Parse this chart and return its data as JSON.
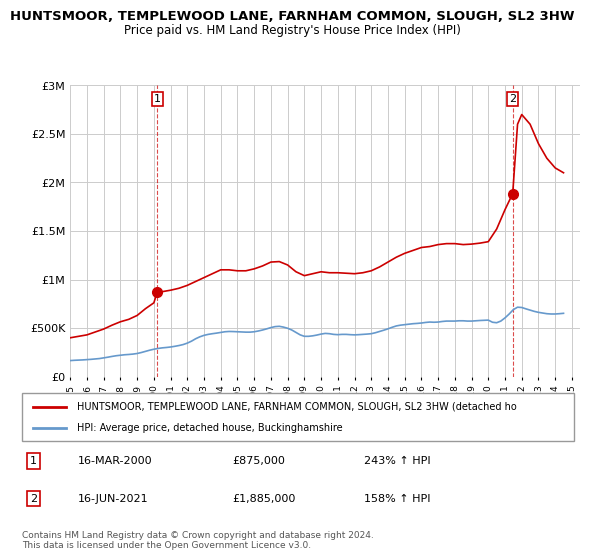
{
  "title": "HUNTSMOOR, TEMPLEWOOD LANE, FARNHAM COMMON, SLOUGH, SL2 3HW",
  "subtitle": "Price paid vs. HM Land Registry's House Price Index (HPI)",
  "ylim": [
    0,
    3000000
  ],
  "yticks": [
    0,
    500000,
    1000000,
    1500000,
    2000000,
    2500000,
    3000000
  ],
  "ytick_labels": [
    "£0",
    "£500K",
    "£1M",
    "£1.5M",
    "£2M",
    "£2.5M",
    "£3M"
  ],
  "x_start_year": 1995,
  "x_end_year": 2025,
  "legend_line1": "HUNTSMOOR, TEMPLEWOOD LANE, FARNHAM COMMON, SLOUGH, SL2 3HW (detached ho",
  "legend_line2": "HPI: Average price, detached house, Buckinghamshire",
  "point1_label": "1",
  "point1_date": "16-MAR-2000",
  "point1_price": 875000,
  "point1_year": 2000.21,
  "point1_hpi_pct": "243% ↑ HPI",
  "point2_label": "2",
  "point2_date": "16-JUN-2021",
  "point2_price": 1885000,
  "point2_year": 2021.46,
  "point2_hpi_pct": "158% ↑ HPI",
  "red_color": "#cc0000",
  "blue_color": "#6699cc",
  "annotation_color": "#cc0000",
  "background_color": "#ffffff",
  "grid_color": "#cccccc",
  "copyright_text": "Contains HM Land Registry data © Crown copyright and database right 2024.\nThis data is licensed under the Open Government Licence v3.0.",
  "hpi_data_x": [
    1995.0,
    1995.25,
    1995.5,
    1995.75,
    1996.0,
    1996.25,
    1996.5,
    1996.75,
    1997.0,
    1997.25,
    1997.5,
    1997.75,
    1998.0,
    1998.25,
    1998.5,
    1998.75,
    1999.0,
    1999.25,
    1999.5,
    1999.75,
    2000.0,
    2000.25,
    2000.5,
    2000.75,
    2001.0,
    2001.25,
    2001.5,
    2001.75,
    2002.0,
    2002.25,
    2002.5,
    2002.75,
    2003.0,
    2003.25,
    2003.5,
    2003.75,
    2004.0,
    2004.25,
    2004.5,
    2004.75,
    2005.0,
    2005.25,
    2005.5,
    2005.75,
    2006.0,
    2006.25,
    2006.5,
    2006.75,
    2007.0,
    2007.25,
    2007.5,
    2007.75,
    2008.0,
    2008.25,
    2008.5,
    2008.75,
    2009.0,
    2009.25,
    2009.5,
    2009.75,
    2010.0,
    2010.25,
    2010.5,
    2010.75,
    2011.0,
    2011.25,
    2011.5,
    2011.75,
    2012.0,
    2012.25,
    2012.5,
    2012.75,
    2013.0,
    2013.25,
    2013.5,
    2013.75,
    2014.0,
    2014.25,
    2014.5,
    2014.75,
    2015.0,
    2015.25,
    2015.5,
    2015.75,
    2016.0,
    2016.25,
    2016.5,
    2016.75,
    2017.0,
    2017.25,
    2017.5,
    2017.75,
    2018.0,
    2018.25,
    2018.5,
    2018.75,
    2019.0,
    2019.25,
    2019.5,
    2019.75,
    2020.0,
    2020.25,
    2020.5,
    2020.75,
    2021.0,
    2021.25,
    2021.5,
    2021.75,
    2022.0,
    2022.25,
    2022.5,
    2022.75,
    2023.0,
    2023.25,
    2023.5,
    2023.75,
    2024.0,
    2024.25,
    2024.5
  ],
  "hpi_data_y": [
    165000,
    168000,
    170000,
    172000,
    175000,
    178000,
    182000,
    186000,
    193000,
    200000,
    208000,
    215000,
    220000,
    225000,
    228000,
    232000,
    238000,
    248000,
    260000,
    272000,
    282000,
    290000,
    296000,
    300000,
    305000,
    312000,
    320000,
    330000,
    345000,
    365000,
    390000,
    410000,
    425000,
    435000,
    442000,
    448000,
    455000,
    462000,
    465000,
    464000,
    462000,
    460000,
    458000,
    458000,
    462000,
    470000,
    480000,
    492000,
    505000,
    515000,
    518000,
    510000,
    498000,
    480000,
    455000,
    430000,
    415000,
    415000,
    420000,
    428000,
    438000,
    445000,
    442000,
    435000,
    432000,
    435000,
    435000,
    432000,
    430000,
    432000,
    435000,
    438000,
    442000,
    452000,
    465000,
    478000,
    492000,
    508000,
    522000,
    530000,
    535000,
    540000,
    545000,
    548000,
    552000,
    558000,
    562000,
    560000,
    562000,
    568000,
    572000,
    572000,
    572000,
    575000,
    575000,
    572000,
    572000,
    575000,
    578000,
    580000,
    582000,
    560000,
    555000,
    572000,
    605000,
    645000,
    690000,
    715000,
    712000,
    698000,
    685000,
    672000,
    662000,
    655000,
    648000,
    645000,
    645000,
    648000,
    652000
  ],
  "red_data_x": [
    1995.0,
    1995.5,
    1996.0,
    1996.5,
    1997.0,
    1997.5,
    1998.0,
    1998.5,
    1999.0,
    1999.5,
    2000.0,
    2000.21,
    2000.5,
    2001.0,
    2001.5,
    2002.0,
    2002.5,
    2003.0,
    2003.5,
    2004.0,
    2004.5,
    2005.0,
    2005.5,
    2006.0,
    2006.5,
    2007.0,
    2007.5,
    2008.0,
    2008.5,
    2009.0,
    2009.5,
    2010.0,
    2010.5,
    2011.0,
    2011.5,
    2012.0,
    2012.5,
    2013.0,
    2013.5,
    2014.0,
    2014.5,
    2015.0,
    2015.5,
    2016.0,
    2016.5,
    2017.0,
    2017.5,
    2018.0,
    2018.5,
    2019.0,
    2019.5,
    2020.0,
    2020.5,
    2021.0,
    2021.46,
    2021.75,
    2022.0,
    2022.5,
    2023.0,
    2023.5,
    2024.0,
    2024.5
  ],
  "red_data_y": [
    400000,
    415000,
    430000,
    460000,
    490000,
    530000,
    565000,
    590000,
    630000,
    700000,
    760000,
    875000,
    875000,
    890000,
    910000,
    940000,
    980000,
    1020000,
    1060000,
    1100000,
    1100000,
    1090000,
    1090000,
    1110000,
    1140000,
    1180000,
    1185000,
    1150000,
    1080000,
    1040000,
    1060000,
    1080000,
    1070000,
    1070000,
    1065000,
    1060000,
    1070000,
    1090000,
    1130000,
    1180000,
    1230000,
    1270000,
    1300000,
    1330000,
    1340000,
    1360000,
    1370000,
    1370000,
    1360000,
    1365000,
    1375000,
    1390000,
    1520000,
    1720000,
    1885000,
    2600000,
    2700000,
    2600000,
    2400000,
    2250000,
    2150000,
    2100000
  ]
}
